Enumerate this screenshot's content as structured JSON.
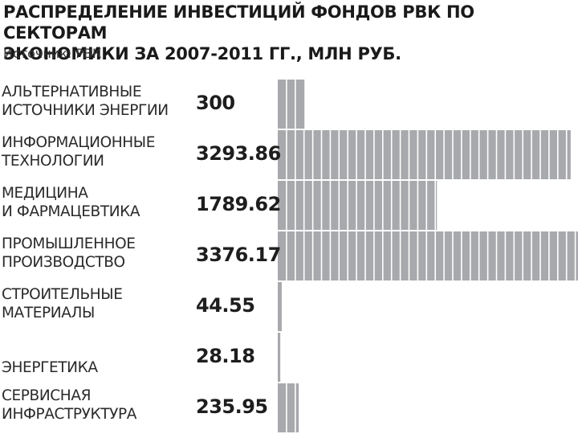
{
  "title": "РАСПРЕДЕЛЕНИЕ ИНВЕСТИЦИЙ ФОНДОВ РВК ПО СЕКТОРАМ\nЭКОНОМИКИ ЗА 2007-2011 ГГ., МЛН РУБ.",
  "source": "Источник: РВК",
  "colors": {
    "bar": "#a7a9ac",
    "segment_line": "#ffffff"
  },
  "chart_data": {
    "type": "bar",
    "orientation": "horizontal",
    "title": "РАСПРЕДЕЛЕНИЕ ИНВЕСТИЦИЙ ФОНДОВ РВК ПО СЕКТОРАМ ЭКОНОМИКИ ЗА 2007-2011 ГГ., МЛН РУБ.",
    "categories": [
      "АЛЬТЕРНАТИВНЫЕ\nИСТОЧНИКИ ЭНЕРГИИ",
      "ИНФОРМАЦИОННЫЕ\nТЕХНОЛОГИИ",
      "МЕДИЦИНА\nИ ФАРМАЦЕВТИКА",
      "ПРОМЫШЛЕННОЕ\nПРОИЗВОДСТВО",
      "СТРОИТЕЛЬНЫЕ\nМАТЕРИАЛЫ",
      "ЭНЕРГЕТИКА",
      "СЕРВИСНАЯ\nИНФРАСТРУКТУРА"
    ],
    "value_labels": [
      "300",
      "3293.86",
      "1789.62",
      "3376.17",
      "44.55",
      "28.18",
      "235.95"
    ],
    "values": [
      300,
      3293.86,
      1789.62,
      3376.17,
      44.55,
      28.18,
      235.95
    ],
    "xlim": [
      0,
      3376.17
    ],
    "grid": false,
    "legend": "none"
  }
}
